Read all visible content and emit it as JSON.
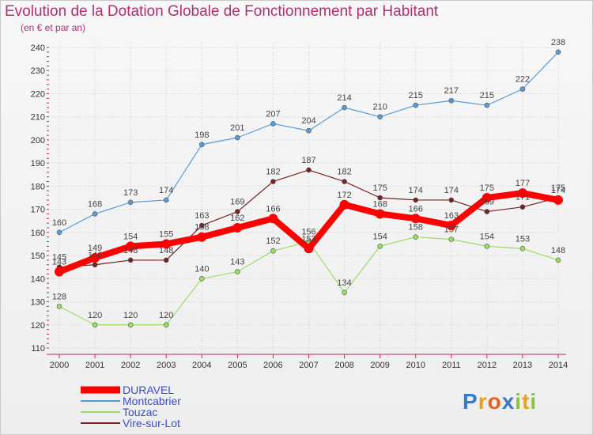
{
  "title": "Evolution de la Dotation Globale de Fonctionnement par Habitant",
  "subtitle": "(en € et par an)",
  "logo": "Proxiti",
  "chart_data": {
    "type": "line",
    "title": "Evolution de la Dotation Globale de Fonctionnement par Habitant",
    "subtitle": "(en € et par an)",
    "xlabel": "",
    "ylabel": "",
    "x": [
      "2000",
      "2001",
      "2002",
      "2003",
      "2004",
      "2005",
      "2006",
      "2007",
      "2008",
      "2009",
      "2010",
      "2011",
      "2012",
      "2013",
      "2014"
    ],
    "ylim": [
      110,
      240
    ],
    "yticks": [
      110,
      120,
      130,
      140,
      150,
      160,
      170,
      180,
      190,
      200,
      210,
      220,
      230,
      240
    ],
    "grid": true,
    "legend_position": "bottom-left",
    "series": [
      {
        "name": "DURAVEL",
        "color": "#ff0000",
        "values": [
          143,
          149,
          154,
          155,
          158,
          162,
          166,
          153,
          172,
          168,
          166,
          163,
          175,
          177,
          174
        ]
      },
      {
        "name": "Montcabrier",
        "color": "#5b9bd5",
        "values": [
          160,
          168,
          173,
          174,
          198,
          201,
          207,
          204,
          214,
          210,
          215,
          217,
          215,
          222,
          238
        ]
      },
      {
        "name": "Touzac",
        "color": "#99dd66",
        "values": [
          128,
          120,
          120,
          120,
          140,
          143,
          152,
          156,
          134,
          154,
          158,
          157,
          154,
          153,
          148
        ]
      },
      {
        "name": "Vire-sur-Lot",
        "color": "#772222",
        "values": [
          145,
          146,
          148,
          148,
          163,
          169,
          182,
          187,
          182,
          175,
          174,
          174,
          169,
          171,
          175
        ]
      }
    ]
  }
}
